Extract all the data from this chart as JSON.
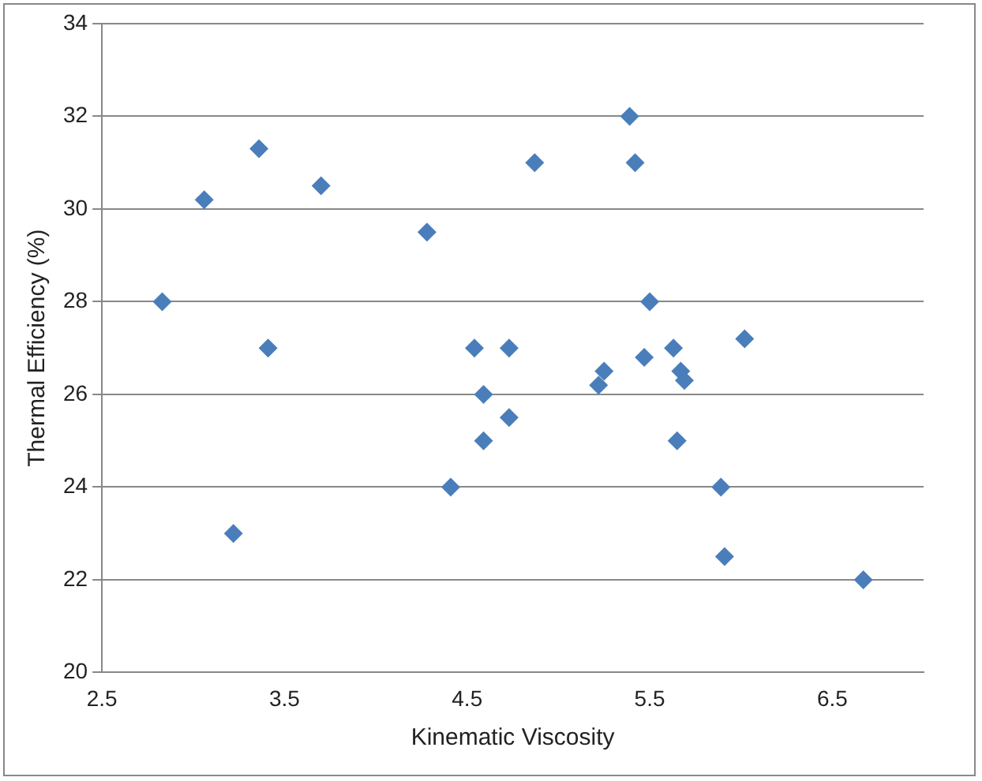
{
  "chart_data": {
    "type": "scatter",
    "xlabel": "Kinematic Viscosity",
    "ylabel": "Thermal Efficiency (%)",
    "xlim": [
      2.5,
      7
    ],
    "xticks": [
      2.5,
      3.5,
      4.5,
      5.5,
      6.5
    ],
    "ylim": [
      20,
      34
    ],
    "yticks": [
      20,
      22,
      24,
      26,
      28,
      30,
      32,
      34
    ],
    "grid": "y",
    "legend": false,
    "marker": "diamond",
    "series": [
      {
        "color": "#4a7ebb",
        "x": [
          2.83,
          3.06,
          3.22,
          3.36,
          3.41,
          3.7,
          4.28,
          4.41,
          4.54,
          4.59,
          4.59,
          4.73,
          4.73,
          4.87,
          5.22,
          5.25,
          5.39,
          5.42,
          5.47,
          5.5,
          5.63,
          5.67,
          5.69,
          5.65,
          5.89,
          5.91,
          6.02,
          6.67
        ],
        "values": [
          28,
          30.2,
          23,
          31.3,
          27,
          30.5,
          29.5,
          24,
          27,
          26,
          25,
          27,
          25.5,
          31,
          26.2,
          26.5,
          32,
          31,
          26.8,
          28,
          27,
          26.5,
          26.3,
          25,
          24,
          22.5,
          27.2,
          22
        ]
      }
    ]
  }
}
